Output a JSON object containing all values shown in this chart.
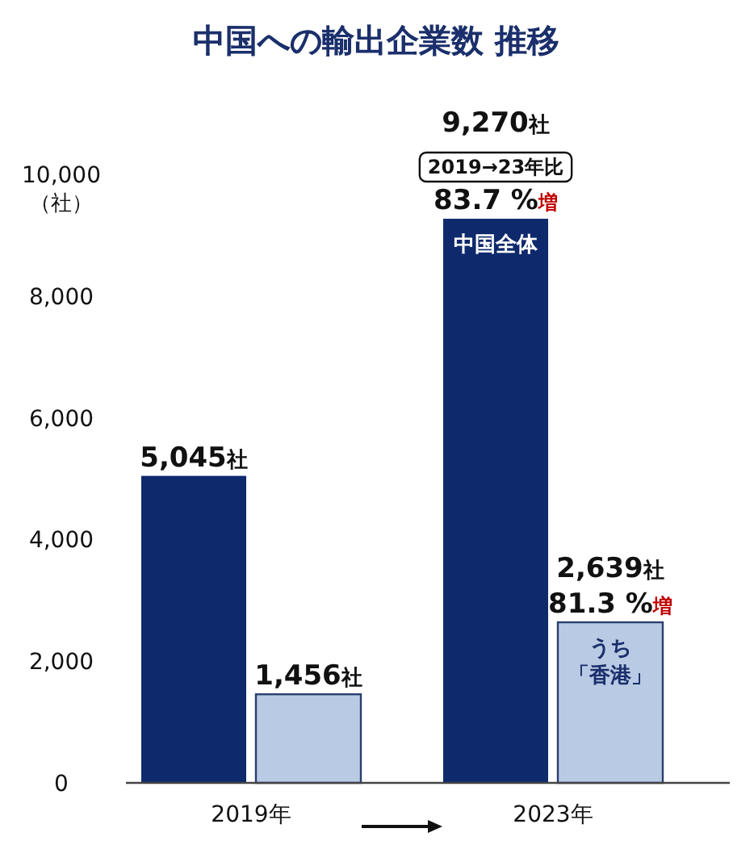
{
  "chart_data": {
    "type": "bar",
    "title": "中国への輸出企業数 推移",
    "ylabel": "（社）",
    "categories": [
      "2019年",
      "2023年"
    ],
    "series": [
      {
        "name": "中国全体",
        "color": "#0e2a6c",
        "values": [
          5045,
          9270
        ],
        "value_labels": [
          "5,045社",
          "9,270社"
        ]
      },
      {
        "name": "うち「香港」",
        "color": "#b9cae4",
        "values": [
          1456,
          2639
        ],
        "value_labels": [
          "1,456社",
          "2,639社"
        ]
      }
    ],
    "ylim": [
      0,
      10000
    ],
    "yticks": [
      0,
      {
        "value": 2000,
        "label": "2,000"
      },
      {
        "value": 4000,
        "label": "4,000"
      },
      {
        "value": 6000,
        "label": "6,000"
      },
      {
        "value": 8000,
        "label": "8,000"
      },
      {
        "value": 10000,
        "label": "10,000"
      }
    ],
    "annotations": [
      {
        "text": "2019→23年比",
        "x": "2023年",
        "y": 9270
      },
      {
        "text": "83.7 %増",
        "x": "2023年",
        "y": 9270
      },
      {
        "text": "81.3 %増",
        "x": "2023年",
        "y": 2639
      }
    ],
    "legend": false,
    "grid": false
  }
}
